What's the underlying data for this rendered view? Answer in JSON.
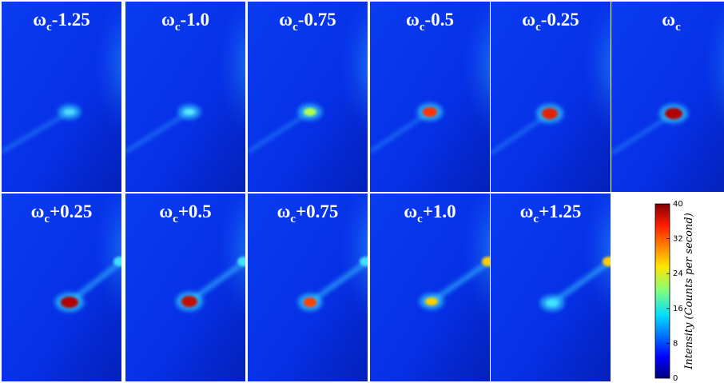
{
  "panels": [
    {
      "symbol": "ω",
      "subscript": "c",
      "offset": "-1.25"
    },
    {
      "symbol": "ω",
      "subscript": "c",
      "offset": "-1.0"
    },
    {
      "symbol": "ω",
      "subscript": "c",
      "offset": "-0.75"
    },
    {
      "symbol": "ω",
      "subscript": "c",
      "offset": "-0.5"
    },
    {
      "symbol": "ω",
      "subscript": "c",
      "offset": "-0.25"
    },
    {
      "symbol": "ω",
      "subscript": "c"
    },
    {
      "symbol": "ω",
      "subscript": "c",
      "offset": "+0.25"
    },
    {
      "symbol": "ω",
      "subscript": "c",
      "offset": "+0.5"
    },
    {
      "symbol": "ω",
      "subscript": "c",
      "offset": "+0.75"
    },
    {
      "symbol": "ω",
      "subscript": "c",
      "offset": "+1.0"
    },
    {
      "symbol": "ω",
      "subscript": "c",
      "offset": "+1.25"
    }
  ],
  "colorbar": {
    "label": "Intensity (Counts per second)",
    "lim": [
      0,
      40
    ],
    "ticks": [
      0,
      8,
      16,
      24,
      32,
      40
    ]
  }
}
